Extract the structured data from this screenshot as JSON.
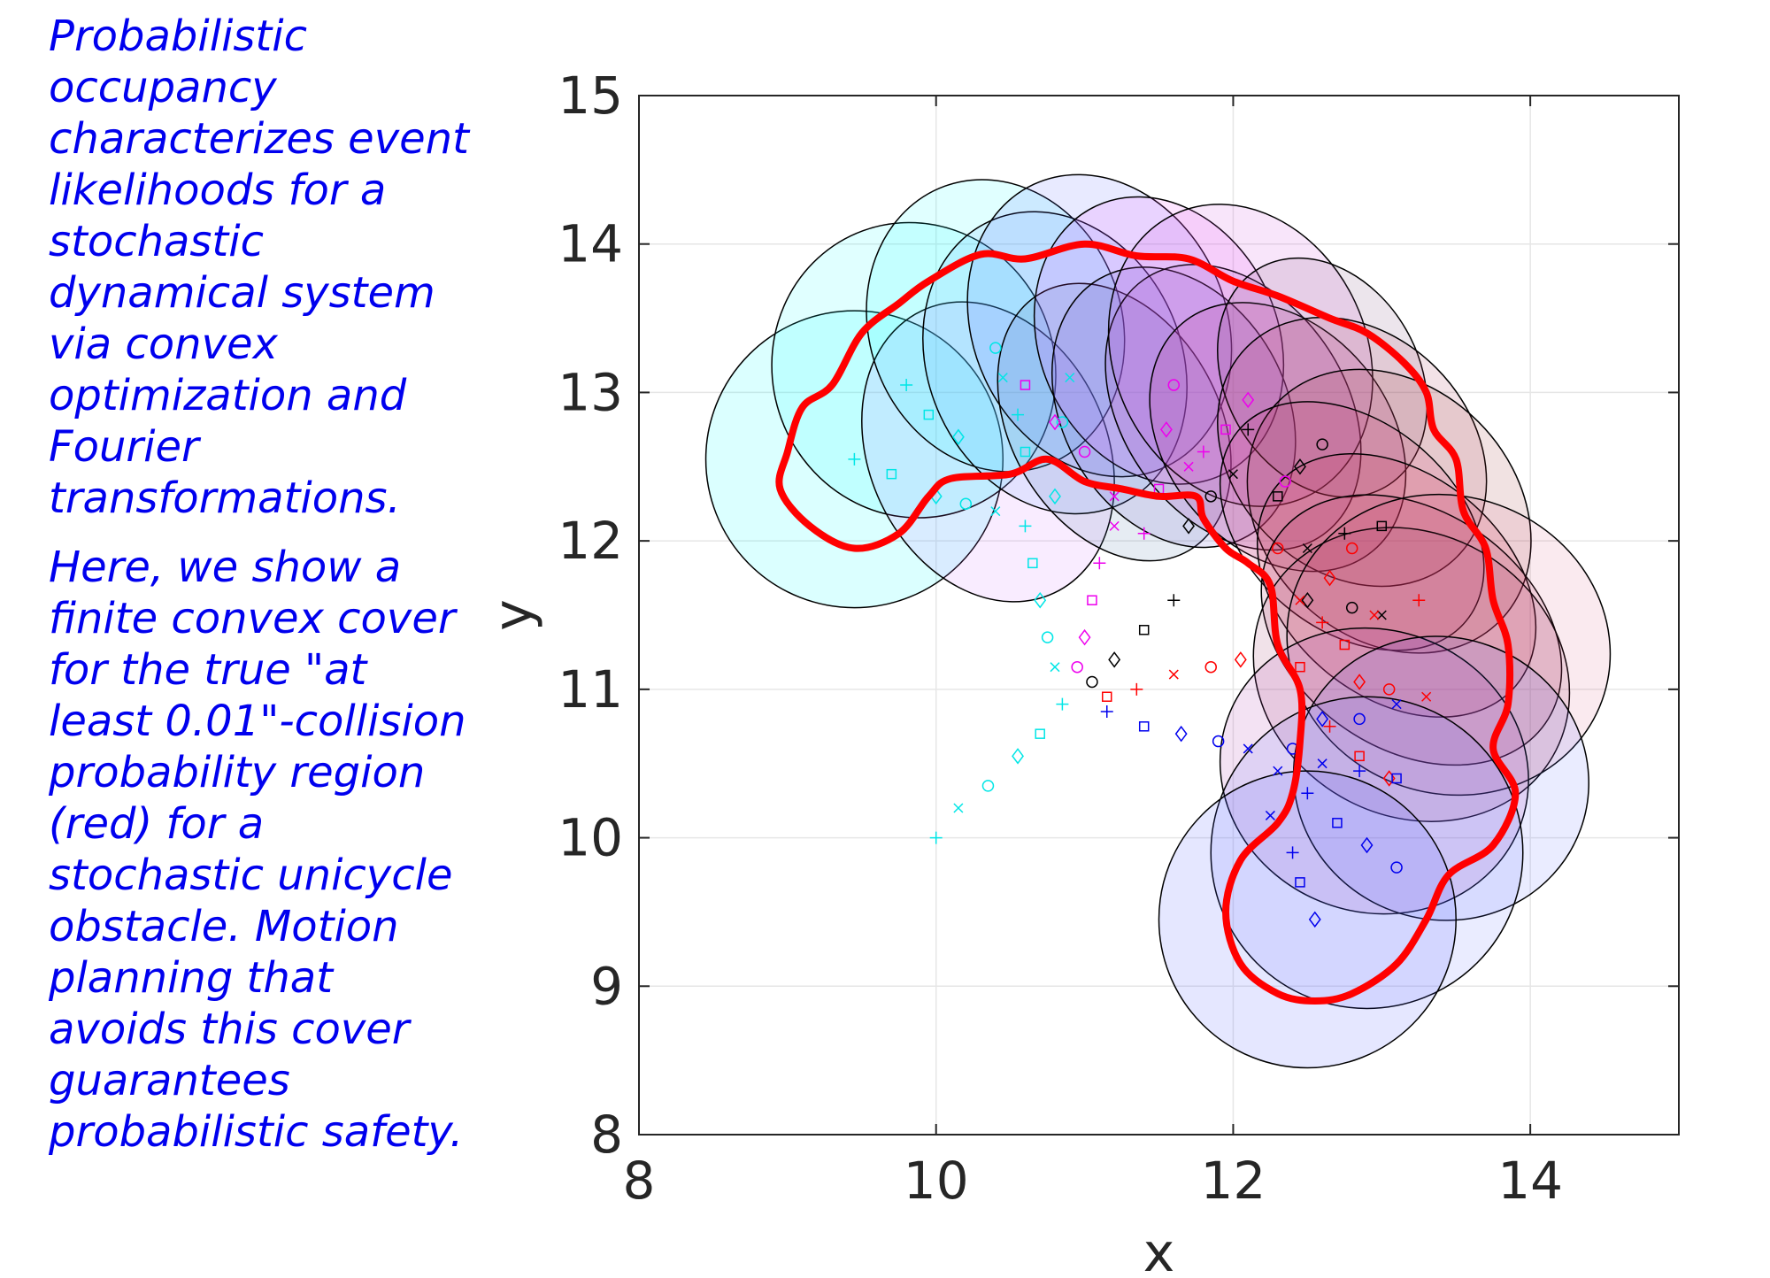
{
  "caption": {
    "paragraph1": "Probabilistic occupancy characterizes event likelihoods for a stochastic dynamical system via convex optimization and Fourier transformations.",
    "paragraph2": "Here, we show a finite convex cover for the true \"at least 0.01\"-collision probability region (red) for a stochastic unicycle obstacle. Motion planning that avoids this cover guarantees probabilistic safety."
  },
  "chart_data": {
    "type": "scatter",
    "xlabel": "x",
    "ylabel": "y",
    "xlim": [
      8,
      15
    ],
    "ylim": [
      8,
      15
    ],
    "xticks": [
      "8",
      "10",
      "12",
      "14"
    ],
    "yticks": [
      "8",
      "9",
      "10",
      "11",
      "12",
      "13",
      "14",
      "15"
    ],
    "grid": true,
    "colors": {
      "boundary": "#ff0000",
      "caption": "#0000ee",
      "trajectory": [
        "#00e6e6",
        "#ee00ee",
        "#000000",
        "#ff0000",
        "#0000ee"
      ]
    },
    "ellipses": [
      {
        "cx": 9.45,
        "cy": 12.55,
        "rx": 1.0,
        "ry": 1.0,
        "angle": 0,
        "fill": "#00ffff",
        "opacity": 0.14
      },
      {
        "cx": 9.85,
        "cy": 13.15,
        "rx": 0.95,
        "ry": 1.0,
        "angle": 20,
        "fill": "#00ffff",
        "opacity": 0.12
      },
      {
        "cx": 10.35,
        "cy": 12.6,
        "rx": 0.8,
        "ry": 1.05,
        "angle": 25,
        "fill": "#cc66ff",
        "opacity": 0.12
      },
      {
        "cx": 10.4,
        "cy": 13.45,
        "rx": 0.85,
        "ry": 1.0,
        "angle": 20,
        "fill": "#00ffff",
        "opacity": 0.12
      },
      {
        "cx": 10.8,
        "cy": 13.2,
        "rx": 0.85,
        "ry": 1.05,
        "angle": 25,
        "fill": "#66aaff",
        "opacity": 0.14
      },
      {
        "cx": 11.1,
        "cy": 13.45,
        "rx": 0.85,
        "ry": 1.05,
        "angle": 25,
        "fill": "#4455ff",
        "opacity": 0.12
      },
      {
        "cx": 11.2,
        "cy": 12.8,
        "rx": 0.7,
        "ry": 1.0,
        "angle": 30,
        "fill": "#336699",
        "opacity": 0.12
      },
      {
        "cx": 11.5,
        "cy": 13.35,
        "rx": 0.8,
        "ry": 1.0,
        "angle": 25,
        "fill": "#ee44ff",
        "opacity": 0.14
      },
      {
        "cx": 11.6,
        "cy": 12.9,
        "rx": 0.75,
        "ry": 1.0,
        "angle": 30,
        "fill": "#6655cc",
        "opacity": 0.14
      },
      {
        "cx": 12.0,
        "cy": 12.9,
        "rx": 0.75,
        "ry": 1.05,
        "angle": 35,
        "fill": "#aa44bb",
        "opacity": 0.16
      },
      {
        "cx": 12.05,
        "cy": 13.25,
        "rx": 0.85,
        "ry": 1.05,
        "angle": 25,
        "fill": "#cc44dd",
        "opacity": 0.14
      },
      {
        "cx": 12.3,
        "cy": 12.7,
        "rx": 0.75,
        "ry": 1.0,
        "angle": 40,
        "fill": "#bb3388",
        "opacity": 0.16
      },
      {
        "cx": 12.6,
        "cy": 13.1,
        "rx": 0.65,
        "ry": 0.85,
        "angle": 30,
        "fill": "#774477",
        "opacity": 0.14
      },
      {
        "cx": 12.8,
        "cy": 12.6,
        "rx": 0.8,
        "ry": 1.0,
        "angle": 45,
        "fill": "#aa3355",
        "opacity": 0.14
      },
      {
        "cx": 13.05,
        "cy": 12.2,
        "rx": 0.85,
        "ry": 1.05,
        "angle": 45,
        "fill": "#993333",
        "opacity": 0.14
      },
      {
        "cx": 12.8,
        "cy": 12.1,
        "rx": 0.7,
        "ry": 1.0,
        "angle": 50,
        "fill": "#cc2266",
        "opacity": 0.12
      },
      {
        "cx": 13.1,
        "cy": 11.7,
        "rx": 0.75,
        "ry": 1.05,
        "angle": 50,
        "fill": "#cc2244",
        "opacity": 0.14
      },
      {
        "cx": 13.2,
        "cy": 11.4,
        "rx": 0.8,
        "ry": 1.1,
        "angle": 55,
        "fill": "#aa2255",
        "opacity": 0.14
      },
      {
        "cx": 13.2,
        "cy": 11.1,
        "rx": 0.95,
        "ry": 1.1,
        "angle": 60,
        "fill": "#993366",
        "opacity": 0.14
      },
      {
        "cx": 13.45,
        "cy": 11.3,
        "rx": 1.0,
        "ry": 1.1,
        "angle": 70,
        "fill": "#cc3366",
        "opacity": 0.1
      },
      {
        "cx": 12.95,
        "cy": 10.45,
        "rx": 0.95,
        "ry": 1.05,
        "angle": 70,
        "fill": "#aa33aa",
        "opacity": 0.14
      },
      {
        "cx": 13.4,
        "cy": 10.4,
        "rx": 0.95,
        "ry": 1.0,
        "angle": 70,
        "fill": "#5566ff",
        "opacity": 0.12
      },
      {
        "cx": 12.9,
        "cy": 9.9,
        "rx": 1.05,
        "ry": 1.05,
        "angle": 0,
        "fill": "#5566ff",
        "opacity": 0.12
      },
      {
        "cx": 12.5,
        "cy": 9.45,
        "rx": 1.0,
        "ry": 1.0,
        "angle": 0,
        "fill": "#4455ff",
        "opacity": 0.14
      }
    ],
    "boundary": {
      "name": "collision probability region",
      "points": [
        [
          9.0,
          12.6
        ],
        [
          9.1,
          12.9
        ],
        [
          9.3,
          13.05
        ],
        [
          9.5,
          13.4
        ],
        [
          9.75,
          13.6
        ],
        [
          9.95,
          13.75
        ],
        [
          10.3,
          13.93
        ],
        [
          10.6,
          13.9
        ],
        [
          11.0,
          14.0
        ],
        [
          11.35,
          13.92
        ],
        [
          11.7,
          13.9
        ],
        [
          12.0,
          13.75
        ],
        [
          12.3,
          13.65
        ],
        [
          12.65,
          13.5
        ],
        [
          12.9,
          13.4
        ],
        [
          13.15,
          13.2
        ],
        [
          13.3,
          13.0
        ],
        [
          13.35,
          12.75
        ],
        [
          13.5,
          12.55
        ],
        [
          13.55,
          12.2
        ],
        [
          13.7,
          11.95
        ],
        [
          13.75,
          11.6
        ],
        [
          13.85,
          11.3
        ],
        [
          13.85,
          10.9
        ],
        [
          13.75,
          10.6
        ],
        [
          13.9,
          10.3
        ],
        [
          13.75,
          9.95
        ],
        [
          13.45,
          9.75
        ],
        [
          13.3,
          9.45
        ],
        [
          13.1,
          9.15
        ],
        [
          12.8,
          8.95
        ],
        [
          12.55,
          8.9
        ],
        [
          12.3,
          8.95
        ],
        [
          12.05,
          9.15
        ],
        [
          11.95,
          9.5
        ],
        [
          12.05,
          9.85
        ],
        [
          12.3,
          10.1
        ],
        [
          12.4,
          10.3
        ],
        [
          12.45,
          10.65
        ],
        [
          12.45,
          11.0
        ],
        [
          12.3,
          11.3
        ],
        [
          12.25,
          11.7
        ],
        [
          12.1,
          11.85
        ],
        [
          11.95,
          11.95
        ],
        [
          11.8,
          12.15
        ],
        [
          11.75,
          12.3
        ],
        [
          11.5,
          12.3
        ],
        [
          11.25,
          12.35
        ],
        [
          11.0,
          12.4
        ],
        [
          10.75,
          12.55
        ],
        [
          10.5,
          12.45
        ],
        [
          10.1,
          12.42
        ],
        [
          9.95,
          12.3
        ],
        [
          9.75,
          12.05
        ],
        [
          9.45,
          11.95
        ],
        [
          9.15,
          12.1
        ],
        [
          8.95,
          12.35
        ]
      ]
    },
    "series": [
      {
        "color": "#00e6e6",
        "points": [
          [
            9.45,
            12.55
          ],
          [
            9.7,
            12.45
          ],
          [
            10.0,
            12.3
          ],
          [
            10.2,
            12.25
          ],
          [
            10.4,
            12.2
          ],
          [
            9.8,
            13.05
          ],
          [
            9.95,
            12.85
          ],
          [
            10.15,
            12.7
          ],
          [
            10.4,
            13.3
          ],
          [
            10.45,
            13.1
          ],
          [
            10.55,
            12.85
          ],
          [
            10.6,
            12.6
          ],
          [
            10.8,
            12.3
          ],
          [
            10.85,
            12.8
          ],
          [
            10.9,
            13.1
          ],
          [
            10.6,
            12.1
          ],
          [
            10.65,
            11.85
          ],
          [
            10.7,
            11.6
          ],
          [
            10.75,
            11.35
          ],
          [
            10.8,
            11.15
          ],
          [
            10.85,
            10.9
          ],
          [
            10.7,
            10.7
          ],
          [
            10.55,
            10.55
          ],
          [
            10.35,
            10.35
          ],
          [
            10.15,
            10.2
          ],
          [
            10.0,
            10.0
          ]
        ]
      },
      {
        "color": "#ee00ee",
        "points": [
          [
            10.6,
            13.05
          ],
          [
            10.8,
            12.8
          ],
          [
            11.0,
            12.6
          ],
          [
            11.2,
            12.3
          ],
          [
            11.4,
            12.05
          ],
          [
            11.5,
            12.35
          ],
          [
            11.55,
            12.75
          ],
          [
            11.6,
            13.05
          ],
          [
            11.7,
            12.5
          ],
          [
            11.8,
            12.6
          ],
          [
            11.95,
            12.75
          ],
          [
            12.1,
            12.95
          ],
          [
            12.35,
            12.4
          ],
          [
            11.2,
            12.1
          ],
          [
            11.1,
            11.85
          ],
          [
            11.05,
            11.6
          ],
          [
            11.0,
            11.35
          ],
          [
            10.95,
            11.15
          ]
        ]
      },
      {
        "color": "#000000",
        "points": [
          [
            11.7,
            12.1
          ],
          [
            11.85,
            12.3
          ],
          [
            12.0,
            12.45
          ],
          [
            12.1,
            12.75
          ],
          [
            12.3,
            12.3
          ],
          [
            12.45,
            12.5
          ],
          [
            12.6,
            12.65
          ],
          [
            12.5,
            11.95
          ],
          [
            12.75,
            12.05
          ],
          [
            13.0,
            12.1
          ],
          [
            12.5,
            11.6
          ],
          [
            12.8,
            11.55
          ],
          [
            13.0,
            11.5
          ],
          [
            11.6,
            11.6
          ],
          [
            11.4,
            11.4
          ],
          [
            11.2,
            11.2
          ],
          [
            11.05,
            11.05
          ]
        ]
      },
      {
        "color": "#ff0000",
        "points": [
          [
            12.3,
            11.95
          ],
          [
            12.45,
            11.6
          ],
          [
            12.6,
            11.45
          ],
          [
            12.75,
            11.3
          ],
          [
            12.65,
            11.75
          ],
          [
            12.8,
            11.95
          ],
          [
            12.95,
            11.5
          ],
          [
            13.25,
            11.6
          ],
          [
            12.45,
            11.15
          ],
          [
            12.85,
            11.05
          ],
          [
            13.05,
            11.0
          ],
          [
            13.3,
            10.95
          ],
          [
            12.65,
            10.75
          ],
          [
            12.85,
            10.55
          ],
          [
            13.05,
            10.4
          ],
          [
            11.85,
            11.15
          ],
          [
            11.6,
            11.1
          ],
          [
            11.35,
            11.0
          ],
          [
            11.15,
            10.95
          ],
          [
            12.05,
            11.2
          ]
        ]
      },
      {
        "color": "#0000ee",
        "points": [
          [
            12.3,
            10.45
          ],
          [
            12.5,
            10.3
          ],
          [
            12.7,
            10.1
          ],
          [
            12.9,
            9.95
          ],
          [
            13.1,
            9.8
          ],
          [
            12.25,
            10.15
          ],
          [
            12.4,
            9.9
          ],
          [
            12.45,
            9.7
          ],
          [
            12.55,
            9.45
          ],
          [
            12.4,
            10.6
          ],
          [
            12.6,
            10.5
          ],
          [
            12.85,
            10.45
          ],
          [
            13.1,
            10.4
          ],
          [
            12.6,
            10.8
          ],
          [
            12.85,
            10.8
          ],
          [
            13.1,
            10.9
          ],
          [
            11.15,
            10.85
          ],
          [
            11.4,
            10.75
          ],
          [
            11.65,
            10.7
          ],
          [
            11.9,
            10.65
          ],
          [
            12.1,
            10.6
          ]
        ]
      }
    ]
  }
}
